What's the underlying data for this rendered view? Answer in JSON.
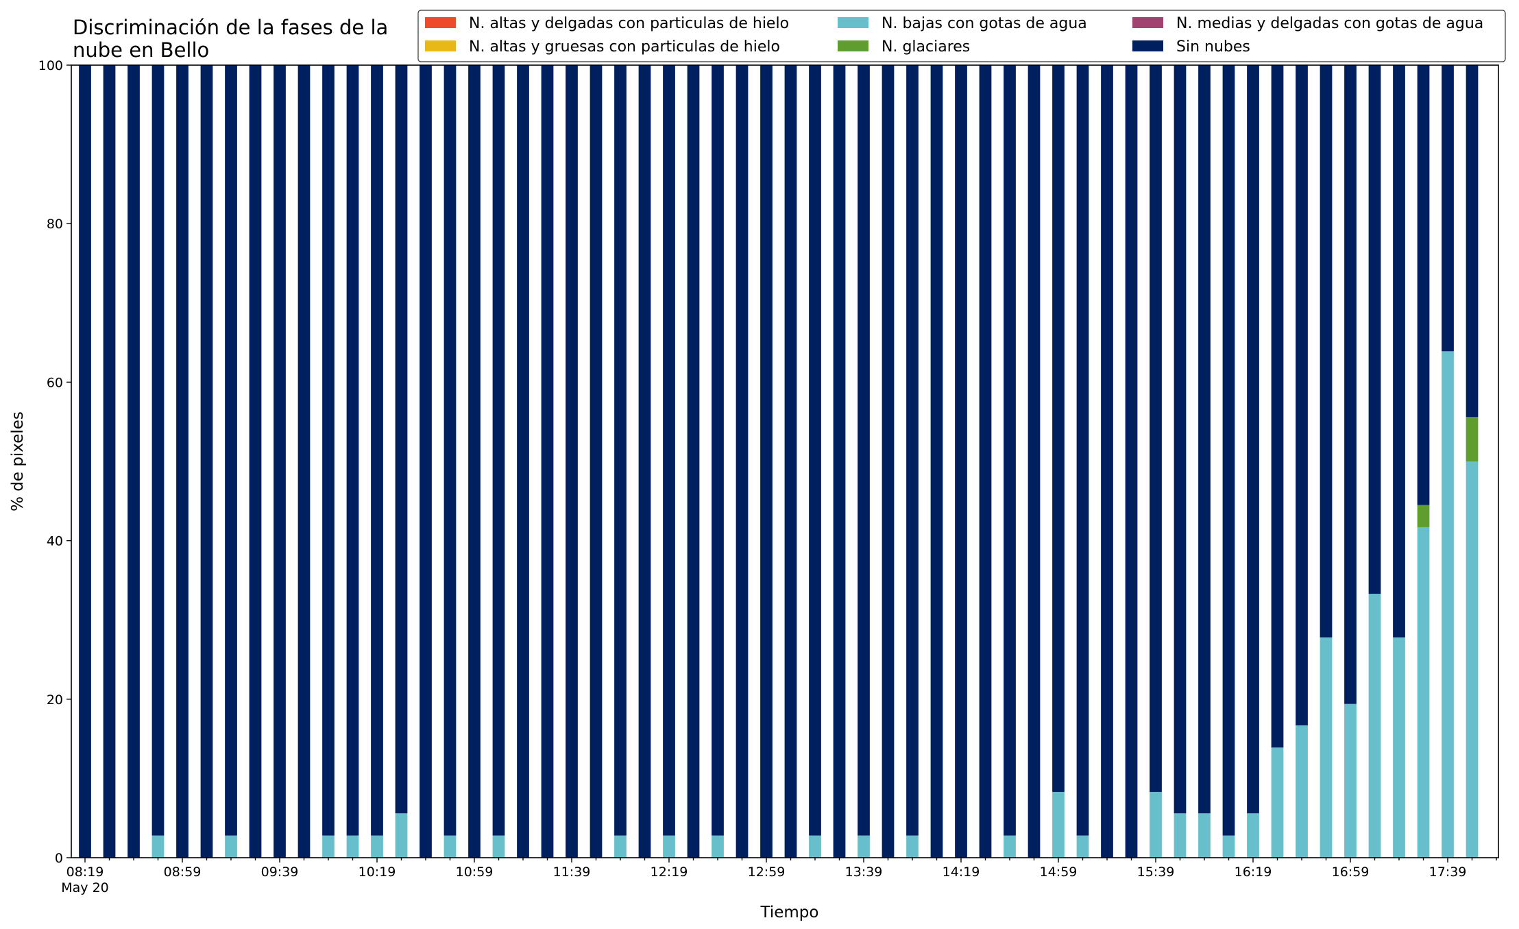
{
  "chart_data": {
    "type": "bar",
    "stacked": true,
    "title_lines": [
      "Discriminación de la fases de la",
      "nube en Bello"
    ],
    "xlabel": "Tiempo",
    "ylabel": "% de pixeles",
    "ylim": [
      0,
      100
    ],
    "yticks": [
      0,
      20,
      40,
      60,
      80,
      100
    ],
    "grid": false,
    "legend_position": "top-right",
    "categories": [
      "08:19",
      "08:29",
      "08:39",
      "08:49",
      "08:59",
      "09:09",
      "09:19",
      "09:29",
      "09:39",
      "09:49",
      "09:59",
      "10:09",
      "10:19",
      "10:29",
      "10:39",
      "10:49",
      "10:59",
      "11:09",
      "11:19",
      "11:29",
      "11:39",
      "11:49",
      "11:59",
      "12:09",
      "12:19",
      "12:29",
      "12:39",
      "12:49",
      "12:59",
      "13:09",
      "13:19",
      "13:29",
      "13:39",
      "13:49",
      "13:59",
      "14:09",
      "14:19",
      "14:29",
      "14:39",
      "14:49",
      "14:59",
      "15:09",
      "15:19",
      "15:29",
      "15:39",
      "15:49",
      "15:59",
      "16:09",
      "16:19",
      "16:29",
      "16:39",
      "16:49",
      "16:59",
      "17:09",
      "17:19",
      "17:29",
      "17:39",
      "17:49"
    ],
    "xtick_labels": [
      {
        "index": 0,
        "label": "08:19",
        "sublabel": "May 20"
      },
      {
        "index": 4,
        "label": "08:59"
      },
      {
        "index": 8,
        "label": "09:39"
      },
      {
        "index": 12,
        "label": "10:19"
      },
      {
        "index": 16,
        "label": "10:59"
      },
      {
        "index": 20,
        "label": "11:39"
      },
      {
        "index": 24,
        "label": "12:19"
      },
      {
        "index": 28,
        "label": "12:59"
      },
      {
        "index": 32,
        "label": "13:39"
      },
      {
        "index": 36,
        "label": "14:19"
      },
      {
        "index": 40,
        "label": "14:59"
      },
      {
        "index": 44,
        "label": "15:39"
      },
      {
        "index": 48,
        "label": "16:19"
      },
      {
        "index": 52,
        "label": "16:59"
      },
      {
        "index": 56,
        "label": "17:39"
      }
    ],
    "series": [
      {
        "name": "N. altas y delgadas con particulas de hielo",
        "color": "#ee4b2b",
        "values": [
          0,
          0,
          0,
          0,
          0,
          0,
          0,
          0,
          0,
          0,
          0,
          0,
          0,
          0,
          0,
          0,
          0,
          0,
          0,
          0,
          0,
          0,
          0,
          0,
          0,
          0,
          0,
          0,
          0,
          0,
          0,
          0,
          0,
          0,
          0,
          0,
          0,
          0,
          0,
          0,
          0,
          0,
          0,
          0,
          0,
          0,
          0,
          0,
          0,
          0,
          0,
          0,
          0,
          0,
          0,
          0,
          0,
          0
        ]
      },
      {
        "name": "N. altas y gruesas con particulas de hielo",
        "color": "#e8b818",
        "values": [
          0,
          0,
          0,
          0,
          0,
          0,
          0,
          0,
          0,
          0,
          0,
          0,
          0,
          0,
          0,
          0,
          0,
          0,
          0,
          0,
          0,
          0,
          0,
          0,
          0,
          0,
          0,
          0,
          0,
          0,
          0,
          0,
          0,
          0,
          0,
          0,
          0,
          0,
          0,
          0,
          0,
          0,
          0,
          0,
          0,
          0,
          0,
          0,
          0,
          0,
          0,
          0,
          0,
          0,
          0,
          0,
          0,
          0
        ]
      },
      {
        "name": "N. bajas con gotas de agua",
        "color": "#66bfcb",
        "values": [
          0,
          0,
          0,
          2.8,
          0,
          0,
          2.8,
          0,
          0,
          0,
          2.8,
          2.8,
          2.8,
          5.6,
          0,
          2.8,
          0,
          2.8,
          0,
          0,
          0,
          0,
          2.8,
          0,
          2.8,
          0,
          2.8,
          0,
          0,
          0,
          2.8,
          0,
          2.8,
          0,
          2.8,
          0,
          0,
          0,
          2.8,
          0,
          8.3,
          2.8,
          0,
          0,
          8.3,
          5.6,
          5.6,
          2.8,
          5.6,
          13.9,
          16.7,
          27.8,
          19.4,
          33.3,
          27.8,
          41.7,
          63.9,
          50.0
        ]
      },
      {
        "name": "N. glaciares",
        "color": "#5f9e2e",
        "values": [
          0,
          0,
          0,
          0,
          0,
          0,
          0,
          0,
          0,
          0,
          0,
          0,
          0,
          0,
          0,
          0,
          0,
          0,
          0,
          0,
          0,
          0,
          0,
          0,
          0,
          0,
          0,
          0,
          0,
          0,
          0,
          0,
          0,
          0,
          0,
          0,
          0,
          0,
          0,
          0,
          0,
          0,
          0,
          0,
          0,
          0,
          0,
          0,
          0,
          0,
          0,
          0,
          0,
          0,
          0,
          2.8,
          0,
          5.6
        ]
      },
      {
        "name": "N. medias y delgadas con gotas de agua",
        "color": "#a24271",
        "values": [
          0,
          0,
          0,
          0,
          0,
          0,
          0,
          0,
          0,
          0,
          0,
          0,
          0,
          0,
          0,
          0,
          0,
          0,
          0,
          0,
          0,
          0,
          0,
          0,
          0,
          0,
          0,
          0,
          0,
          0,
          0,
          0,
          0,
          0,
          0,
          0,
          0,
          0,
          0,
          0,
          0,
          0,
          0,
          0,
          0,
          0,
          0,
          0,
          0,
          0,
          0,
          0,
          0,
          0,
          0,
          0,
          0,
          0
        ]
      },
      {
        "name": "Sin nubes",
        "color": "#001f5f",
        "values": [
          100,
          100,
          100,
          97.2,
          100,
          100,
          97.2,
          100,
          100,
          100,
          97.2,
          97.2,
          97.2,
          94.4,
          100,
          97.2,
          100,
          97.2,
          100,
          100,
          100,
          100,
          97.2,
          100,
          97.2,
          100,
          97.2,
          100,
          100,
          100,
          97.2,
          100,
          97.2,
          100,
          97.2,
          100,
          100,
          100,
          97.2,
          100,
          91.7,
          97.2,
          100,
          100,
          91.7,
          94.4,
          94.4,
          97.2,
          94.4,
          86.1,
          83.3,
          72.2,
          80.6,
          66.7,
          72.2,
          55.5,
          36.1,
          44.4
        ]
      }
    ],
    "legend_order": [
      0,
      1,
      2,
      3,
      4,
      5
    ]
  }
}
